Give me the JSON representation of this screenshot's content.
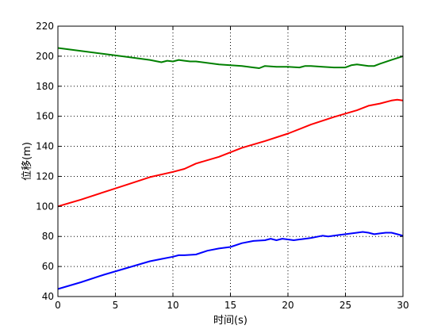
{
  "chart_data": {
    "type": "line",
    "title": "",
    "xlabel": "时间(s)",
    "ylabel": "位移(m)",
    "xlim": [
      0,
      30
    ],
    "ylim": [
      40,
      220
    ],
    "xticks": [
      0,
      5,
      10,
      15,
      20,
      25,
      30
    ],
    "yticks": [
      40,
      60,
      80,
      100,
      120,
      140,
      160,
      180,
      200,
      220
    ],
    "grid": true,
    "grid_style": "dotted",
    "series": [
      {
        "color": "#008000",
        "x": [
          0,
          2,
          4,
          6,
          8,
          9,
          9.5,
          10,
          10.5,
          11,
          11.5,
          12,
          14,
          16,
          17,
          17.5,
          18,
          19,
          20,
          21,
          21.5,
          22,
          23,
          24,
          25,
          25.5,
          26,
          26.5,
          27,
          27.5,
          28,
          29,
          30
        ],
        "y": [
          205.5,
          203.5,
          201.5,
          199.5,
          197.5,
          196,
          197,
          196.5,
          197.5,
          197,
          196.5,
          196.5,
          194.5,
          193.5,
          192.5,
          192,
          193.5,
          193,
          193,
          192.5,
          193.5,
          193.5,
          193,
          192.5,
          192.5,
          194,
          194.5,
          194,
          193.5,
          193.5,
          195,
          197.5,
          200
        ]
      },
      {
        "color": "#ff0000",
        "x": [
          0,
          2,
          4,
          6,
          8,
          10,
          11,
          12,
          14,
          16,
          18,
          20,
          22,
          24,
          26,
          27,
          28,
          29,
          29.5,
          30
        ],
        "y": [
          100,
          104.5,
          109.5,
          114.5,
          119.5,
          123,
          125,
          128.5,
          133,
          139,
          143.5,
          148.5,
          154.5,
          159.5,
          164,
          167,
          168.5,
          170.5,
          171,
          170.5
        ]
      },
      {
        "color": "#0000ff",
        "x": [
          0,
          2,
          4,
          6,
          8,
          9,
          10,
          10.5,
          11,
          12,
          13,
          14,
          15,
          16,
          17,
          18,
          18.5,
          19,
          19.5,
          20,
          20.5,
          21,
          21.5,
          22,
          23,
          23.5,
          24,
          24.5,
          25,
          26,
          26.5,
          27,
          27.5,
          28,
          28.5,
          29,
          29.5,
          30
        ],
        "y": [
          45,
          49.5,
          54.5,
          59,
          63.5,
          65,
          66.5,
          67.5,
          67.5,
          68,
          70.5,
          72,
          73,
          75.5,
          77,
          77.5,
          78.5,
          77.5,
          78.5,
          78,
          77.5,
          78,
          78.5,
          79,
          80.5,
          80,
          80.5,
          81,
          81.5,
          82.5,
          83,
          82.5,
          81.5,
          82,
          82.5,
          82.5,
          81.5,
          80.5
        ]
      }
    ]
  }
}
